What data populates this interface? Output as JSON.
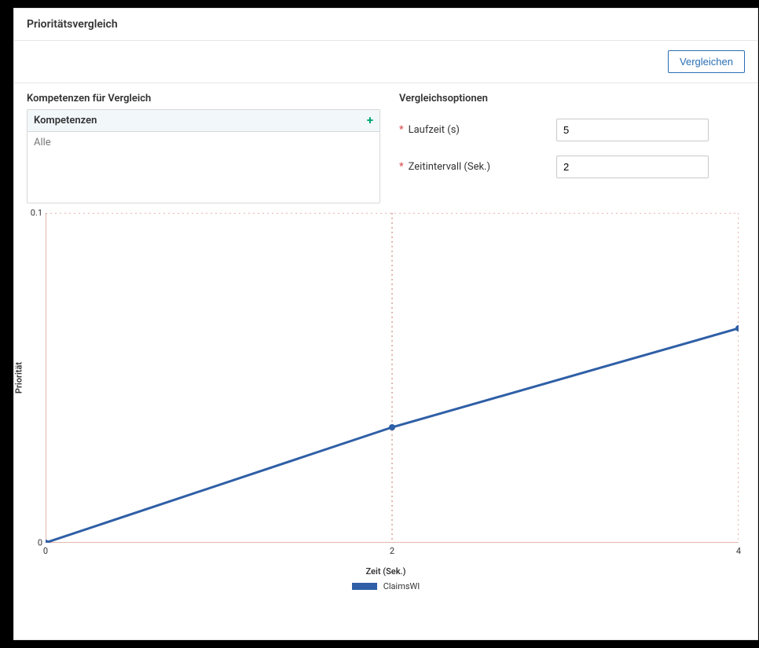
{
  "header": {
    "title": "Prioritätsvergleich"
  },
  "toolbar": {
    "compare_label": "Vergleichen"
  },
  "sections": {
    "competences_title": "Kompetenzen für Vergleich",
    "options_title": "Vergleichsoptionen"
  },
  "listbox": {
    "header": "Kompetenzen",
    "add_icon": "+",
    "items": [
      "Alle"
    ]
  },
  "form": {
    "required_marker": "*",
    "runtime_label": "Laufzeit (s)",
    "runtime_value": "5",
    "interval_label": "Zeitintervall (Sek.)",
    "interval_value": "2"
  },
  "chart": {
    "type": "line",
    "series_name": "ClaimsWI",
    "line_color": "#2f5fa6",
    "marker_color": "#2f5fa6",
    "line_width": 3,
    "marker_radius": 4,
    "grid_color": "#c76f5a",
    "grid_dash": "2,4",
    "axis_color": "#c76f5a",
    "background": "#ffffff",
    "x": [
      0,
      2,
      4
    ],
    "y": [
      0.0,
      0.035,
      0.065
    ],
    "xlim": [
      0,
      4
    ],
    "ylim": [
      0,
      0.1
    ],
    "xticks": [
      0,
      2,
      4
    ],
    "yticks": [
      0,
      0.1
    ],
    "xlabel": "Zeit (Sek.)",
    "ylabel": "Priorität",
    "ytick_labels": [
      "0",
      "0.1"
    ],
    "xtick_labels": [
      "0",
      "2",
      "4"
    ],
    "label_fontsize": 11
  }
}
